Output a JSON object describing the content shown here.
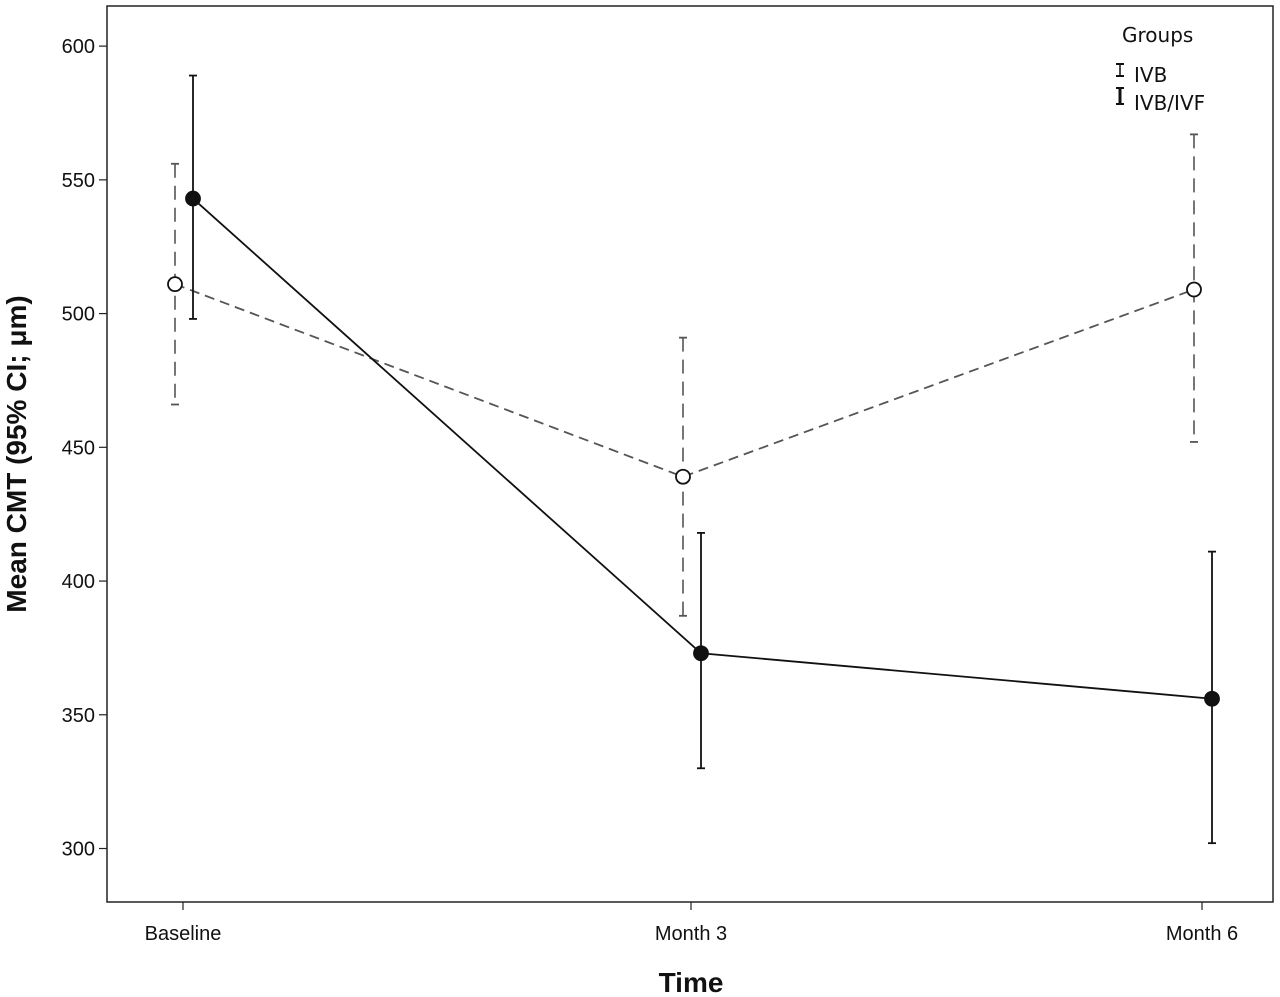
{
  "chart_data": {
    "type": "line",
    "xlabel": "Time",
    "ylabel": "Mean CMT (95% CI; μm)",
    "categories": [
      "Baseline",
      "Month 3",
      "Month 6"
    ],
    "ylim": [
      280,
      615
    ],
    "yticks": [
      300,
      350,
      400,
      450,
      500,
      550,
      600
    ],
    "grid": false,
    "legend": {
      "title": "Groups",
      "placement": "top-right"
    },
    "series": [
      {
        "name": "IVB",
        "style": "dashed",
        "marker": "open-circle",
        "color": "#555555",
        "values": [
          511,
          439,
          509
        ],
        "ci_low": [
          466,
          387,
          452
        ],
        "ci_high": [
          556,
          491,
          567
        ]
      },
      {
        "name": "IVB/IVF",
        "style": "solid",
        "marker": "filled-circle",
        "color": "#111111",
        "values": [
          543,
          373,
          356
        ],
        "ci_low": [
          498,
          330,
          302
        ],
        "ci_high": [
          589,
          418,
          411
        ]
      }
    ]
  }
}
